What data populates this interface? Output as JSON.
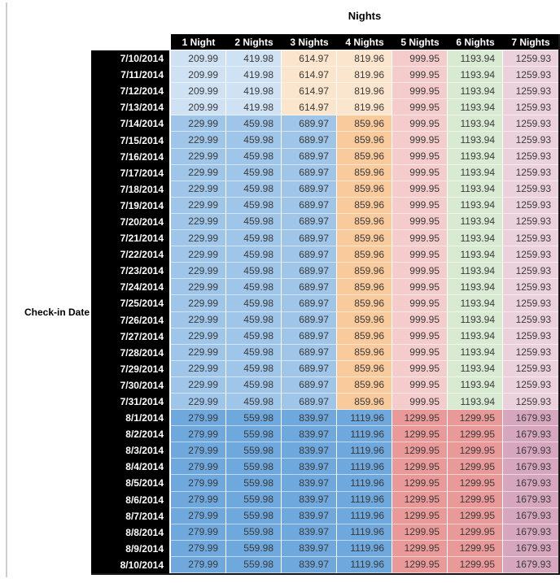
{
  "chart_data": {
    "type": "table",
    "title": "Nights",
    "row_axis_label": "Check-in Date",
    "column_headers": [
      "1 Night",
      "2 Nights",
      "3 Nights",
      "4 Nights",
      "5 Nights",
      "6 Nights",
      "7 Nights"
    ],
    "palette": {
      "light_blue_3": "#cfe2f3",
      "light_blue_2": "#9fc5e8",
      "light_blue_1": "#6fa8dc",
      "light_orange_3": "#fce5cd",
      "light_orange_2": "#f9cb9c",
      "light_red_3": "#f4cccc",
      "light_red_2": "#ea9999",
      "light_green_3": "#d9ead3",
      "light_magenta_3": "#ead1dc",
      "light_magenta_2": "#d5a6bd"
    },
    "sections": [
      {
        "dates": [
          "7/10/2014",
          "7/11/2014",
          "7/12/2014",
          "7/13/2014"
        ],
        "values": [
          209.99,
          419.98,
          614.97,
          819.96,
          999.95,
          1193.94,
          1259.93
        ],
        "cell_colors": [
          "light_blue_3",
          "light_blue_3",
          "light_orange_3",
          "light_orange_3",
          "light_red_3",
          "light_green_3",
          "light_magenta_3"
        ]
      },
      {
        "dates": [
          "7/14/2014",
          "7/15/2014",
          "7/16/2014",
          "7/17/2014",
          "7/18/2014",
          "7/19/2014",
          "7/20/2014",
          "7/21/2014",
          "7/22/2014",
          "7/23/2014",
          "7/24/2014",
          "7/25/2014",
          "7/26/2014",
          "7/27/2014",
          "7/28/2014",
          "7/29/2014",
          "7/30/2014",
          "7/31/2014"
        ],
        "values": [
          229.99,
          459.98,
          689.97,
          859.96,
          999.95,
          1193.94,
          1259.93
        ],
        "cell_colors": [
          "light_blue_2",
          "light_blue_2",
          "light_blue_2",
          "light_orange_2",
          "light_red_3",
          "light_green_3",
          "light_magenta_3"
        ]
      },
      {
        "dates": [
          "8/1/2014",
          "8/2/2014",
          "8/3/2014",
          "8/4/2014",
          "8/5/2014",
          "8/6/2014",
          "8/7/2014",
          "8/8/2014",
          "8/9/2014",
          "8/10/2014"
        ],
        "values": [
          279.99,
          559.98,
          839.97,
          1119.96,
          1299.95,
          1299.95,
          1679.93
        ],
        "cell_colors": [
          "light_blue_1",
          "light_blue_1",
          "light_blue_1",
          "light_blue_1",
          "light_red_2",
          "light_red_2",
          "light_magenta_2"
        ]
      }
    ]
  }
}
